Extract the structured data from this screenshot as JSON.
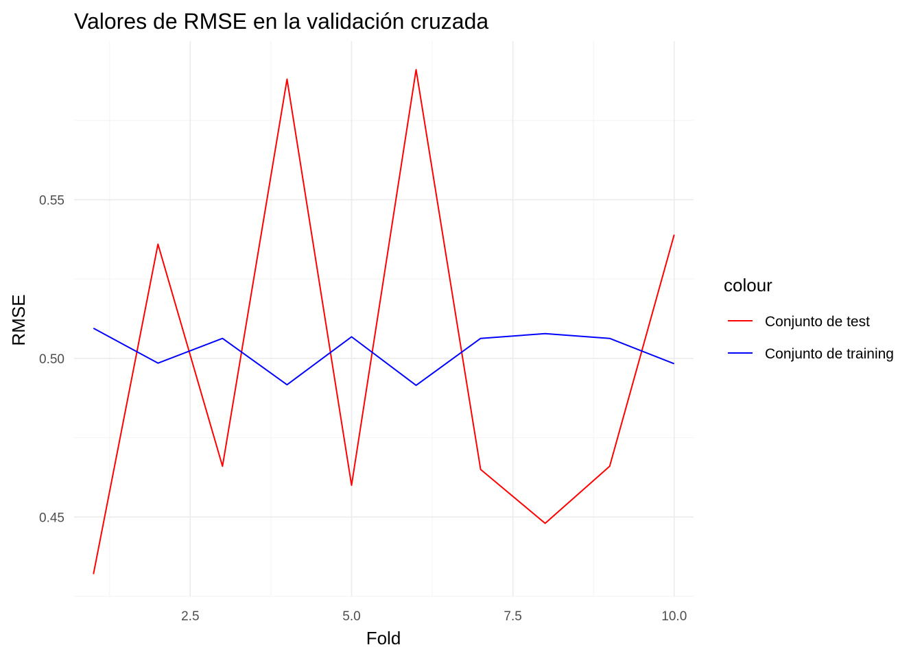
{
  "chart_data": {
    "type": "line",
    "title": "Valores de RMSE en la validación cruzada",
    "xlabel": "Fold",
    "ylabel": "RMSE",
    "xlim": [
      0.7,
      10.3
    ],
    "ylim": [
      0.425,
      0.6
    ],
    "x_ticks": [
      2.5,
      5.0,
      7.5,
      10.0
    ],
    "x_tick_labels": [
      "2.5",
      "5.0",
      "7.5",
      "10.0"
    ],
    "y_ticks": [
      0.45,
      0.5,
      0.55
    ],
    "y_tick_labels": [
      "0.45",
      "0.50",
      "0.55"
    ],
    "grid": true,
    "legend": {
      "title": "colour",
      "position": "right"
    },
    "x": [
      1,
      2,
      3,
      4,
      5,
      6,
      7,
      8,
      9,
      10
    ],
    "series": [
      {
        "name": "Conjunto de test",
        "color": "#ff0000",
        "values": [
          0.432,
          0.536,
          0.466,
          0.588,
          0.46,
          0.591,
          0.465,
          0.448,
          0.466,
          0.539
        ]
      },
      {
        "name": "Conjunto de training",
        "color": "#0000ff",
        "values": [
          0.5095,
          0.4985,
          0.5063,
          0.4917,
          0.5068,
          0.4915,
          0.5063,
          0.5078,
          0.5063,
          0.4983
        ]
      }
    ]
  }
}
